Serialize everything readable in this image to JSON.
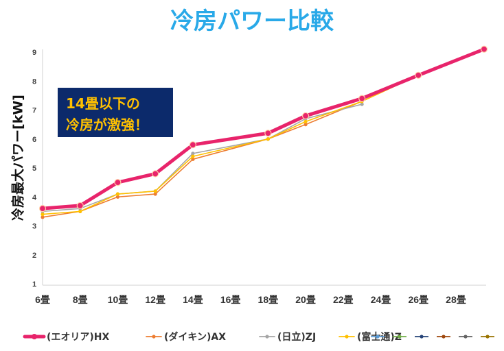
{
  "chart_data": {
    "type": "line",
    "title": "冷房パワー比較",
    "ylabel": "冷房最大パワー[kW]",
    "xlabel": "",
    "ylim": [
      1,
      9
    ],
    "yticks": [
      1,
      2,
      3,
      4,
      5,
      6,
      7,
      8,
      9
    ],
    "x_min": 6,
    "x_max": 29.5,
    "categories": [
      "6畳",
      "8畳",
      "10畳",
      "12畳",
      "14畳",
      "16畳",
      "18畳",
      "20畳",
      "22畳",
      "24畳",
      "26畳",
      "28畳"
    ],
    "category_x": [
      6,
      8,
      10,
      12,
      14,
      16,
      18,
      20,
      22,
      24,
      26,
      28
    ],
    "series": [
      {
        "name": "(エオリア)HX",
        "color": "#e8246b",
        "width": 5,
        "marker": 4.5,
        "x": [
          6,
          8,
          10,
          12,
          14,
          18,
          20,
          23,
          26,
          29.5
        ],
        "values": [
          3.6,
          3.7,
          4.5,
          4.8,
          5.8,
          6.2,
          6.8,
          7.4,
          8.2,
          9.1
        ]
      },
      {
        "name": "(ダイキン)AX",
        "color": "#ed7d31",
        "width": 1.6,
        "marker": 2.6,
        "x": [
          6,
          8,
          10,
          12,
          14,
          18,
          20,
          23,
          26,
          29.5
        ],
        "values": [
          3.3,
          3.5,
          4.0,
          4.1,
          5.3,
          6.0,
          6.5,
          7.3,
          8.2,
          9.1
        ]
      },
      {
        "name": "(日立)ZJ",
        "color": "#a5a5a5",
        "width": 1.6,
        "marker": 2.6,
        "x": [
          6,
          8,
          10,
          12,
          14,
          18,
          20,
          23
        ],
        "values": [
          3.5,
          3.6,
          4.1,
          4.2,
          5.5,
          6.0,
          6.7,
          7.2
        ]
      },
      {
        "name": "(富士通)Z",
        "color": "#ffc000",
        "width": 1.6,
        "marker": 2.6,
        "x": [
          6,
          8,
          10,
          12,
          14,
          18,
          20,
          23,
          26,
          29.5
        ],
        "values": [
          3.4,
          3.5,
          4.1,
          4.2,
          5.4,
          6.0,
          6.6,
          7.3,
          8.2,
          9.1
        ]
      }
    ],
    "legend_extra_colors": [
      "#5b9bd5",
      "#70ad47",
      "#264478",
      "#9e480e",
      "#636363",
      "#997300"
    ],
    "annotation": {
      "lines": [
        "14畳以下の",
        "冷房が激強！"
      ],
      "bg": "#0c2a6b",
      "color": "#ffc000"
    },
    "grid": false,
    "legend_position": "bottom"
  }
}
